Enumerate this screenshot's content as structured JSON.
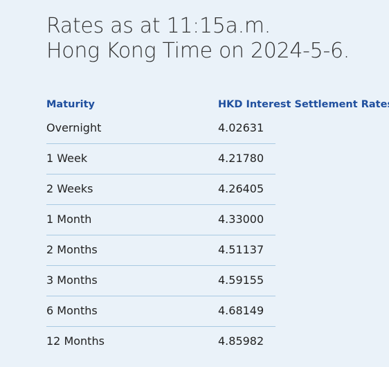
{
  "title": {
    "lines": [
      "Rates as at 11:15a.m.",
      "Hong Kong Time on 2024-5-6."
    ]
  },
  "table": {
    "header": [
      "Maturity",
      "HKD Interest Settlement Rates"
    ],
    "rows": [
      [
        "Overnight",
        "4.02631"
      ],
      [
        "1 Week",
        "4.21780"
      ],
      [
        "2 Weeks",
        "4.26405"
      ],
      [
        "1 Month",
        "4.33000"
      ],
      [
        "2 Months",
        "4.51137"
      ],
      [
        "3 Months",
        "4.59155"
      ],
      [
        "6 Months",
        "4.68149"
      ],
      [
        "12 Months",
        "4.85982"
      ]
    ]
  }
}
